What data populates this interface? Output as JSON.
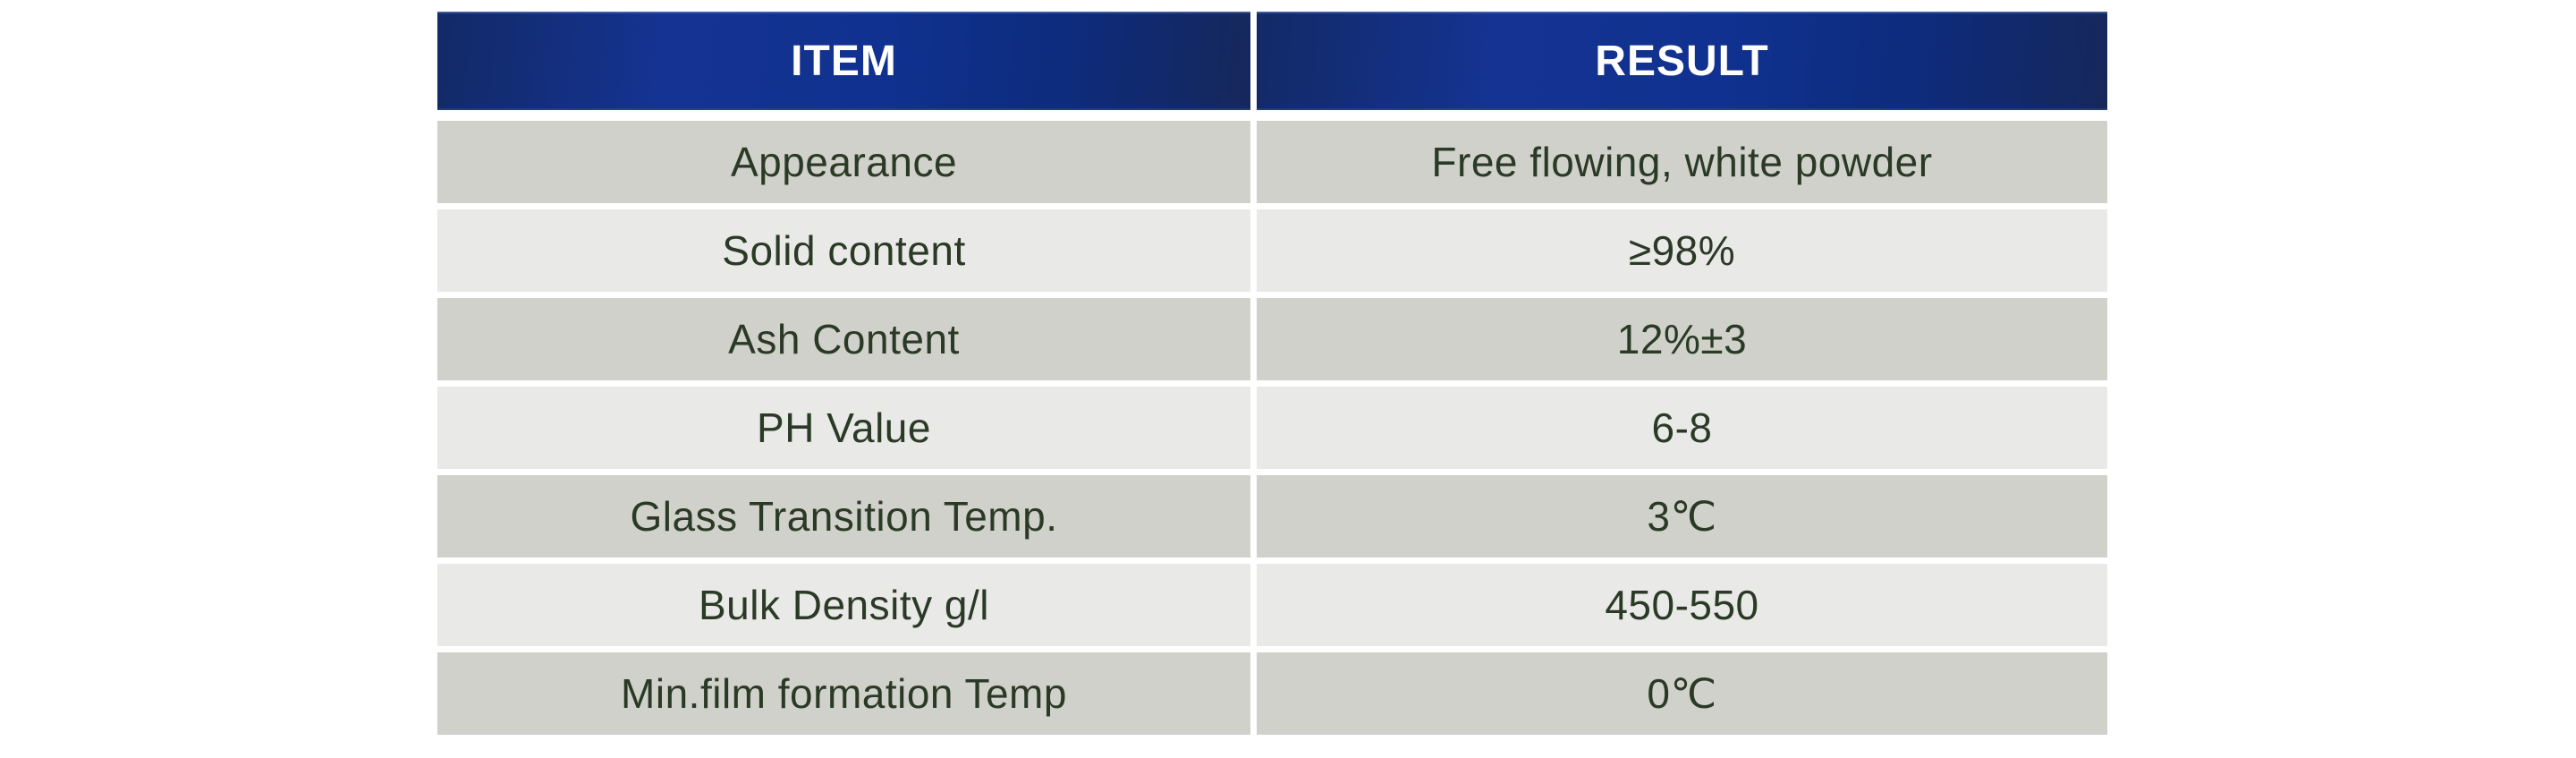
{
  "table": {
    "columns": [
      {
        "key": "item",
        "label": "ITEM"
      },
      {
        "key": "result",
        "label": "RESULT"
      }
    ],
    "rows": [
      {
        "item": "Appearance",
        "result": "Free flowing, white powder"
      },
      {
        "item": "Solid content",
        "result": "≥98%"
      },
      {
        "item": "Ash Content",
        "result": "12%±3"
      },
      {
        "item": "PH Value",
        "result": "6-8"
      },
      {
        "item": "Glass Transition Temp.",
        "result": "3℃"
      },
      {
        "item": "Bulk Density g/l",
        "result": "450-550"
      },
      {
        "item": "Min.film formation Temp",
        "result": "0℃"
      }
    ],
    "colors": {
      "header_blue": "#153392",
      "header_navy_edge": "#16275a",
      "row_shade_dark": "#d0d1ca",
      "row_shade_light": "#e9e9e7",
      "body_text": "#2b3a26",
      "header_text": "#ffffff"
    }
  }
}
